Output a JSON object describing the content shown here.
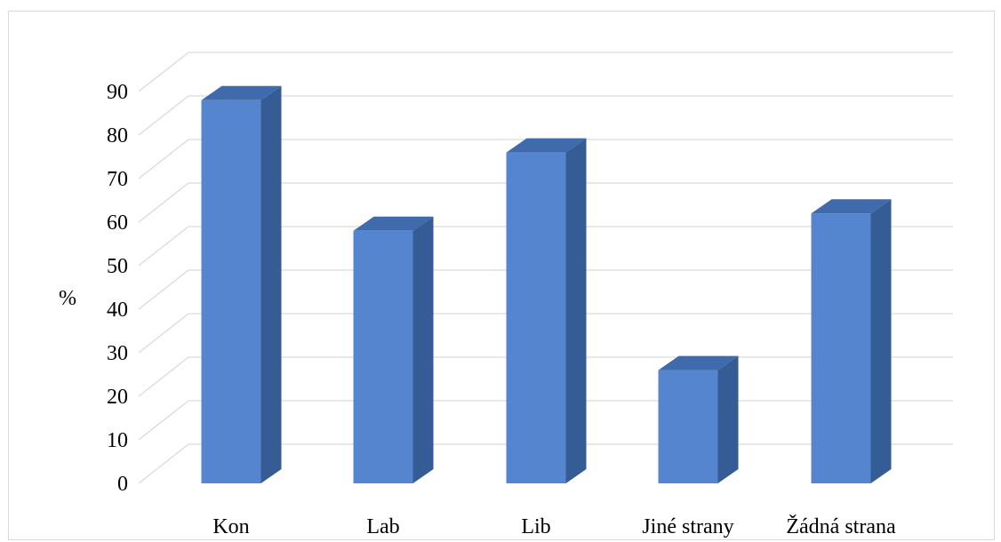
{
  "chart_data": {
    "type": "bar",
    "style": "3d-column",
    "categories": [
      "Kon",
      "Lab",
      "Lib",
      "Jiné strany",
      "Žádná strana"
    ],
    "values": [
      88,
      58,
      76,
      26,
      62
    ],
    "ylabel": "%",
    "xlabel": "",
    "ylim": [
      0,
      90
    ],
    "yticks": [
      0,
      10,
      20,
      30,
      40,
      50,
      60,
      70,
      80,
      90
    ],
    "ytick_labels": [
      "0",
      "10",
      "20",
      "30",
      "40",
      "50",
      "60",
      "70",
      "80",
      "90"
    ],
    "grid": true,
    "legend": "none",
    "colors": {
      "bar_front": "#5585cf",
      "bar_side": "#355c95",
      "bar_top": "#3f6aab",
      "grid": "#d9d9d9"
    }
  }
}
